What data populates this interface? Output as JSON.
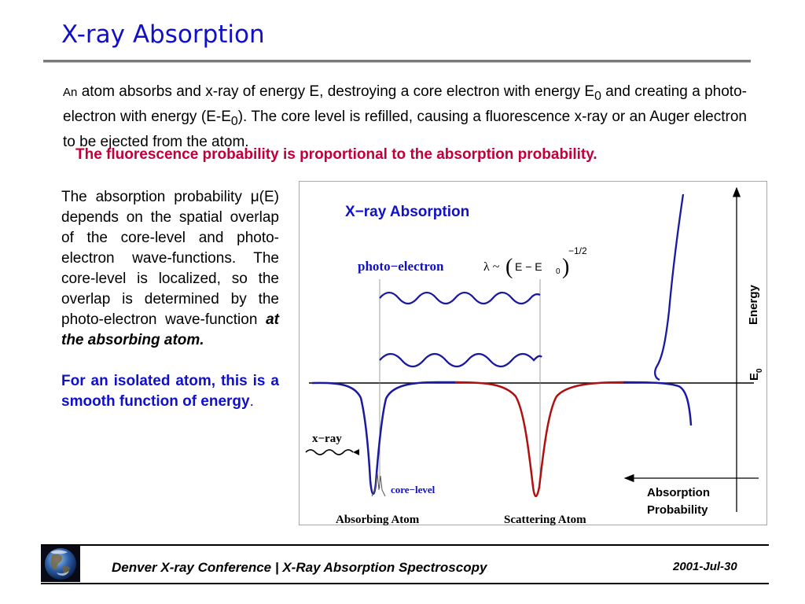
{
  "slide": {
    "title": "X-ray Absorption",
    "intro": {
      "lead": "An",
      "t1": " atom absorbs and x-ray of energy E, destroying a core electron with energy E",
      "sub1": "0",
      "t2": "  and creating a photo-electron with energy (E-E",
      "sub2": "0",
      "t3": ").    The core level  is refilled,  causing  a fluorescence x-ray or an Auger electron to be ejected from the atom."
    },
    "highlight": "The fluorescence probability is proportional to the absorption probability.",
    "left": {
      "p1a": "The absorption probability ",
      "mu": "μ",
      "p1b": "(E) depends on the spatial overlap of the core-level and photo-electron wave-functions.  The core-level is localized, so the overlap is determined by the photo-electron wave-function ",
      "p1c": "at the absorbing atom.",
      "p2a": "For an isolated atom, this is a smooth function of energy",
      "p2b": "."
    }
  },
  "figure": {
    "title": "X−ray Absorption",
    "photo_electron_label": "photo−electron",
    "lambda": "λ ~",
    "formula_core": "E − E",
    "formula_sub": "0",
    "exponent": "−1/2",
    "xray_label": "x−ray",
    "core_level_label": "core−level",
    "absorbing_atom_label": "Absorbing Atom",
    "scattering_atom_label": "Scattering Atom",
    "energy_label": "Energy",
    "e0_label": "E",
    "e0_sub": "0",
    "absorption_prob_line1": "Absorption",
    "absorption_prob_line2": "Probability",
    "colors": {
      "blue": "#1a1aa0",
      "red": "#b01010",
      "title_blue": "#1010c8"
    }
  },
  "footer": {
    "text": "Denver X-ray Conference  |   X-Ray Absorption Spectroscopy",
    "date": "2001-Jul-30",
    "logo_icon": "earth-globe-icon"
  }
}
